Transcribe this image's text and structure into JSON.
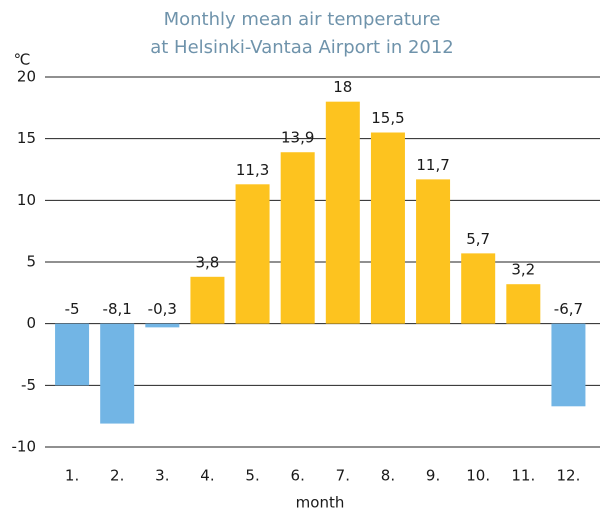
{
  "chart_data": {
    "type": "bar",
    "title": [
      "Monthly mean air temperature",
      "at Helsinki-Vantaa Airport in 2012"
    ],
    "y_axis_label": "℃",
    "x_axis_label": "month",
    "categories": [
      "1.",
      "2.",
      "3.",
      "4.",
      "5.",
      "6.",
      "7.",
      "8.",
      "9.",
      "10.",
      "11.",
      "12."
    ],
    "values": [
      -5,
      -8.1,
      -0.3,
      3.8,
      11.3,
      13.9,
      18,
      15.5,
      11.7,
      5.7,
      3.2,
      -6.7
    ],
    "value_labels": [
      "-5",
      "-8,1",
      "-0,3",
      "3,8",
      "11,3",
      "13,9",
      "18",
      "15,5",
      "11,7",
      "5,7",
      "3,2",
      "-6,7"
    ],
    "positive_color": "#fdc31f",
    "negative_color": "#72b5e5",
    "ylim": [
      -10,
      20
    ],
    "yticks": [
      -10,
      -5,
      0,
      5,
      10,
      15,
      20
    ],
    "grid": true
  }
}
